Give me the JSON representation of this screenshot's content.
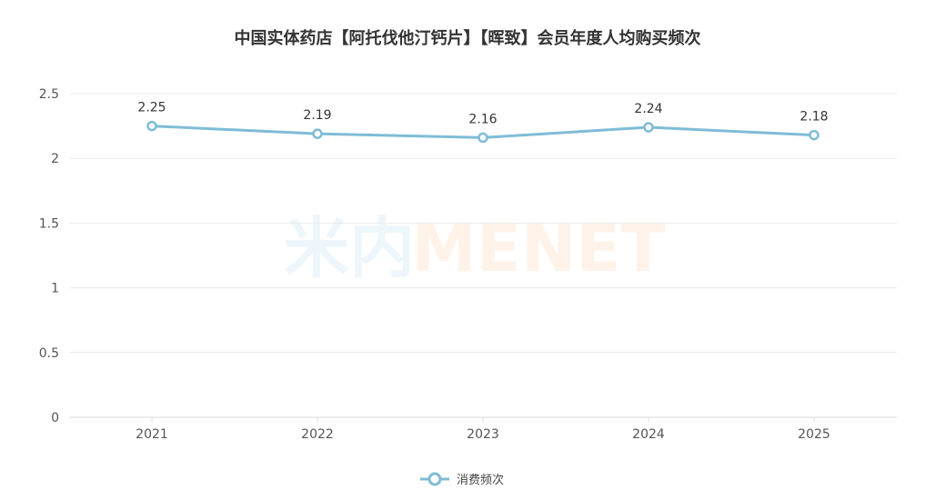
{
  "chart_data": {
    "type": "line",
    "title": "中国实体药店【阿托伐他汀钙片】【晖致】会员年度人均购买频次",
    "categories": [
      "2021",
      "2022",
      "2023",
      "2024",
      "2025"
    ],
    "series": [
      {
        "name": "消费频次",
        "values": [
          2.25,
          2.19,
          2.16,
          2.24,
          2.18
        ],
        "data_labels": [
          "2.25",
          "2.19",
          "2.16",
          "2.24",
          "2.18"
        ],
        "color": "#7fbcd6"
      }
    ],
    "ylim": [
      0,
      2.5
    ],
    "yticks": [
      0,
      0.5,
      1,
      1.5,
      2,
      2.5
    ],
    "ytick_labels": [
      "0",
      "0.5",
      "1",
      "1.5",
      "2",
      "2.5"
    ],
    "grid": true,
    "legend_position": "bottom-center"
  },
  "watermark": {
    "cn": "米内",
    "en": "MENET"
  }
}
